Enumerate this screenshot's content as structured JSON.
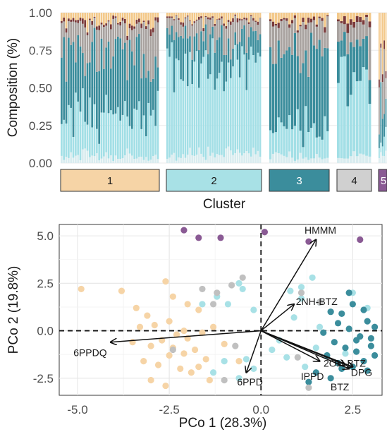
{
  "chart_data": [
    {
      "type": "bar",
      "stacked": true,
      "ylabel": "Composition (%)",
      "xlabel": "Cluster",
      "ylim": [
        0,
        1
      ],
      "yticks": [
        "0.00",
        "0.25",
        "0.50",
        "0.75",
        "1.00"
      ],
      "grid": true,
      "components": [
        {
          "color": "#d9ecef"
        },
        {
          "color": "#a3dfe6"
        },
        {
          "color": "#3b8d9c"
        },
        {
          "color": "#a9a3a0"
        },
        {
          "color": "#7a3a3a"
        },
        {
          "color": "#f3c98b"
        }
      ],
      "clusters": [
        {
          "label": "1",
          "fill": "#f6d4a6",
          "text_color": "#1a1a1a",
          "bar_count": 42,
          "profile": [
            0.04,
            0.28,
            0.4,
            0.2,
            0.02,
            0.06
          ]
        },
        {
          "label": "2",
          "fill": "#a8e1e6",
          "text_color": "#1a1a1a",
          "bar_count": 42,
          "profile": [
            0.05,
            0.62,
            0.18,
            0.1,
            0.01,
            0.04
          ]
        },
        {
          "label": "3",
          "fill": "#3b8d9c",
          "text_color": "#ffffff",
          "bar_count": 22,
          "profile": [
            0.04,
            0.18,
            0.52,
            0.19,
            0.02,
            0.05
          ]
        },
        {
          "label": "4",
          "fill": "#d0d0d0",
          "text_color": "#1a1a1a",
          "bar_count": 11,
          "profile": [
            0.05,
            0.55,
            0.2,
            0.12,
            0.04,
            0.04
          ]
        },
        {
          "label": "5",
          "fill": "#8a5a94",
          "text_color": "#ffffff",
          "bar_count": 5,
          "profile": [
            0.05,
            0.1,
            0.2,
            0.25,
            0.05,
            0.35
          ]
        }
      ]
    },
    {
      "type": "scatter",
      "xlabel": "PCo 1  (28.3%)",
      "ylabel": "PCo 2 (19.8%)",
      "xlim": [
        -5.5,
        3.3
      ],
      "ylim": [
        -3.4,
        5.6
      ],
      "xticks": [
        "-5.0",
        "-2.5",
        "0.0",
        "2.5"
      ],
      "yticks": [
        "-2.5",
        "0.0",
        "2.5",
        "5.0"
      ],
      "grid": true,
      "series": [
        {
          "cluster": "1",
          "color": "#f6d4a6",
          "points": [
            [
              -4.9,
              2.2
            ],
            [
              -3.8,
              2.1
            ],
            [
              -3.4,
              1.2
            ],
            [
              -3.1,
              0.8
            ],
            [
              -2.6,
              2.6
            ],
            [
              -2.4,
              1.8
            ],
            [
              -2.0,
              1.4
            ],
            [
              -1.7,
              1.1
            ],
            [
              -3.3,
              0.2
            ],
            [
              -2.9,
              0.3
            ],
            [
              -2.5,
              0.5
            ],
            [
              -2.1,
              0.0
            ],
            [
              -1.6,
              -0.1
            ],
            [
              -1.3,
              0.2
            ],
            [
              -3.5,
              -0.6
            ],
            [
              -3.0,
              -0.8
            ],
            [
              -2.7,
              -0.5
            ],
            [
              -2.4,
              -0.9
            ],
            [
              -2.1,
              -1.2
            ],
            [
              -1.8,
              -1.0
            ],
            [
              -1.5,
              -1.5
            ],
            [
              -3.2,
              -1.6
            ],
            [
              -2.8,
              -1.8
            ],
            [
              -2.5,
              -1.3
            ],
            [
              -2.2,
              -2.0
            ],
            [
              -1.9,
              -2.2
            ],
            [
              -1.4,
              -2.6
            ],
            [
              -2.6,
              -2.9
            ],
            [
              -3.0,
              -2.6
            ],
            [
              -1.0,
              -0.7
            ],
            [
              -0.6,
              -1.6
            ],
            [
              -2.0,
              -0.4
            ],
            [
              -1.7,
              -1.9
            ],
            [
              -2.3,
              -0.2
            ]
          ]
        },
        {
          "cluster": "2",
          "color": "#a8e1e6",
          "points": [
            [
              -1.2,
              1.8
            ],
            [
              -0.9,
              1.4
            ],
            [
              -0.6,
              2.5
            ],
            [
              -0.2,
              1.1
            ],
            [
              0.8,
              2.1
            ],
            [
              1.1,
              1.7
            ],
            [
              1.4,
              2.8
            ],
            [
              1.9,
              1.0
            ],
            [
              2.5,
              2.0
            ],
            [
              0.9,
              0.7
            ],
            [
              1.6,
              0.2
            ],
            [
              0.5,
              -0.5
            ],
            [
              0.7,
              -1.4
            ],
            [
              1.2,
              -1.9
            ],
            [
              1.5,
              -0.9
            ],
            [
              -1.0,
              -1.6
            ],
            [
              -1.3,
              -2.2
            ],
            [
              -0.4,
              -1.5
            ],
            [
              -0.6,
              -2.5
            ],
            [
              2.3,
              -1.2
            ],
            [
              -1.6,
              1.4
            ],
            [
              1.1,
              2.3
            ],
            [
              -0.5,
              2.2
            ],
            [
              2.9,
              1.2
            ],
            [
              0.3,
              -1.0
            ],
            [
              -0.2,
              -2.0
            ]
          ]
        },
        {
          "cluster": "3",
          "color": "#3b8d9c",
          "points": [
            [
              1.6,
              1.5
            ],
            [
              1.9,
              1.0
            ],
            [
              2.2,
              0.9
            ],
            [
              2.5,
              1.4
            ],
            [
              2.8,
              1.1
            ],
            [
              2.1,
              0.4
            ],
            [
              2.4,
              0.1
            ],
            [
              2.7,
              -0.3
            ],
            [
              2.9,
              0.5
            ],
            [
              2.0,
              -0.6
            ],
            [
              2.3,
              -0.9
            ],
            [
              2.6,
              -1.1
            ],
            [
              3.0,
              -0.8
            ],
            [
              1.8,
              -1.3
            ],
            [
              2.1,
              -1.7
            ],
            [
              2.5,
              -1.9
            ],
            [
              2.8,
              -1.6
            ],
            [
              3.1,
              -1.3
            ],
            [
              1.5,
              -2.2
            ],
            [
              1.9,
              -2.5
            ],
            [
              2.2,
              -2.0
            ],
            [
              2.6,
              -0.5
            ],
            [
              1.7,
              -0.1
            ],
            [
              2.9,
              -2.1
            ],
            [
              3.1,
              0.2
            ],
            [
              1.3,
              -2.7
            ],
            [
              2.4,
              2.0
            ],
            [
              3.0,
              -0.4
            ]
          ]
        },
        {
          "cluster": "4",
          "color": "#c0c0c0",
          "points": [
            [
              -1.6,
              2.2
            ],
            [
              -1.2,
              2.0
            ],
            [
              -0.8,
              2.4
            ],
            [
              -0.5,
              2.8
            ],
            [
              1.1,
              2.0
            ],
            [
              1.6,
              1.5
            ],
            [
              -1.3,
              1.4
            ],
            [
              -2.4,
              -1.0
            ],
            [
              -1.0,
              -2.6
            ],
            [
              -0.7,
              -0.8
            ],
            [
              1.3,
              -3.0
            ],
            [
              1.0,
              -1.4
            ]
          ]
        },
        {
          "cluster": "5",
          "color": "#8a5a94",
          "points": [
            [
              -2.1,
              5.3
            ],
            [
              -1.7,
              4.9
            ],
            [
              -1.1,
              4.9
            ],
            [
              1.3,
              4.7
            ],
            [
              2.7,
              4.8
            ],
            [
              0.1,
              5.2
            ]
          ]
        }
      ],
      "vectors": [
        {
          "label": "HMMM",
          "x": 1.5,
          "y": 4.8,
          "label_x": 1.62,
          "label_y": 5.3,
          "anchor": "middle"
        },
        {
          "label": "2NH-BTZ",
          "x": 0.9,
          "y": 1.4,
          "label_x": 0.95,
          "label_y": 1.55,
          "anchor": "start"
        },
        {
          "label": "6PPDQ",
          "x": -4.1,
          "y": -0.6,
          "label_x": -4.2,
          "label_y": -1.15,
          "anchor": "end"
        },
        {
          "label": "6PPD",
          "x": -0.4,
          "y": -2.2,
          "label_x": -0.3,
          "label_y": -2.7,
          "anchor": "middle"
        },
        {
          "label": "IPPD",
          "x": 1.6,
          "y": -1.6,
          "label_x": 1.4,
          "label_y": -2.4,
          "anchor": "middle"
        },
        {
          "label": "2OH-BTZ",
          "x": 2.3,
          "y": -1.8,
          "label_x": 2.28,
          "label_y": -1.7,
          "anchor": "middle"
        },
        {
          "label": "DPG",
          "x": 2.5,
          "y": -1.9,
          "label_x": 2.45,
          "label_y": -2.2,
          "anchor": "start"
        },
        {
          "label": "BTZ",
          "x": 2.4,
          "y": -2.0,
          "label_x": 2.15,
          "label_y": -2.95,
          "anchor": "middle"
        }
      ]
    }
  ]
}
